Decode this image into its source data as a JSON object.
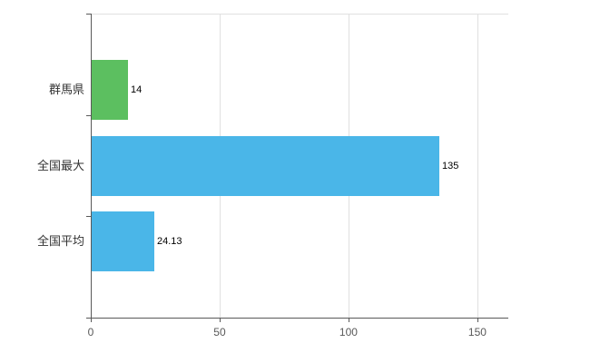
{
  "chart_data": {
    "type": "bar",
    "orientation": "horizontal",
    "title": "",
    "xlabel": "",
    "ylabel": "",
    "categories": [
      "群馬県",
      "全国最大",
      "全国平均"
    ],
    "values": [
      14,
      135,
      24.13
    ],
    "value_labels": [
      "14",
      "135",
      "24.13"
    ],
    "bar_colors": [
      "#5cbf60",
      "#4ab6e8",
      "#4ab6e8"
    ],
    "x_ticks": [
      0,
      50,
      100,
      150
    ],
    "x_tick_labels": [
      "0",
      "50",
      "100",
      "150"
    ],
    "xlim": [
      0,
      162
    ],
    "grid": true,
    "legend": false,
    "styles": {
      "background": "#ffffff",
      "grid_color": "#e0e0e0",
      "axis_color": "#595959",
      "category_label_color": "#333333",
      "value_label_color": "#000000",
      "tick_label_color": "#595959"
    }
  }
}
